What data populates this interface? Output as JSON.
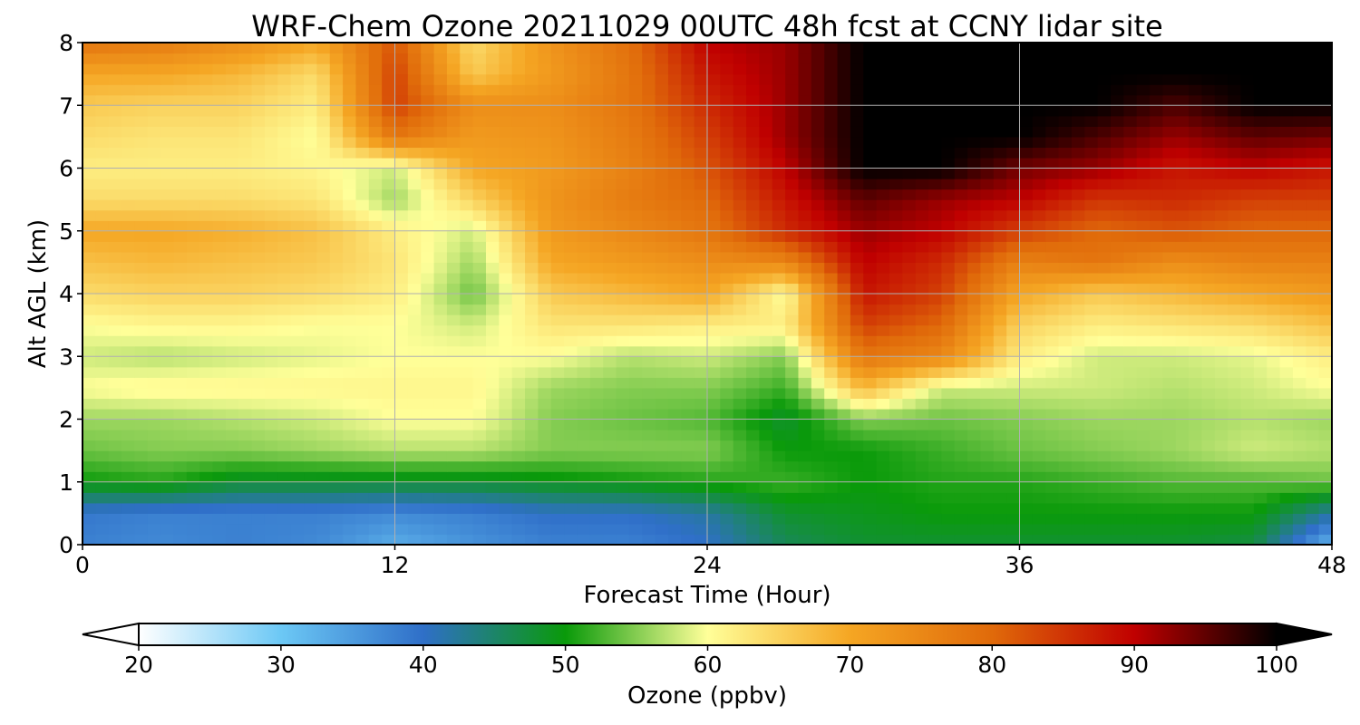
{
  "chart_data": {
    "type": "heatmap",
    "title": "WRF-Chem Ozone  20211029 00UTC 48h fcst at CCNY lidar site",
    "xlabel": "Forecast Time (Hour)",
    "ylabel": "Alt AGL (km)",
    "xlim": [
      0,
      48
    ],
    "ylim": [
      0,
      8
    ],
    "xticks": [
      "0",
      "12",
      "24",
      "36",
      "48"
    ],
    "yticks": [
      "0",
      "1",
      "2",
      "3",
      "4",
      "5",
      "6",
      "7",
      "8"
    ],
    "grid": true,
    "x_hours": [
      0,
      3,
      6,
      9,
      12,
      15,
      18,
      21,
      24,
      27,
      30,
      33,
      36,
      39,
      42,
      45,
      48
    ],
    "y_km": [
      0,
      0.5,
      1,
      1.5,
      2,
      2.5,
      3,
      3.5,
      4,
      4.5,
      5,
      5.5,
      6,
      6.5,
      7,
      7.5,
      8
    ],
    "ozone_ppbv": [
      [
        38,
        37,
        38,
        37,
        33,
        36,
        38,
        38,
        40,
        46,
        48,
        48,
        48,
        48,
        48,
        47,
        32
      ],
      [
        39,
        38,
        38,
        38,
        37,
        38,
        40,
        40,
        42,
        48,
        49,
        50,
        50,
        50,
        50,
        50,
        42
      ],
      [
        50,
        51,
        48,
        48,
        48,
        48,
        49,
        50,
        51,
        52,
        50,
        51,
        51,
        52,
        53,
        53,
        54
      ],
      [
        54,
        55,
        55,
        56,
        57,
        57,
        55,
        55,
        55,
        50,
        50,
        52,
        54,
        55,
        56,
        58,
        57
      ],
      [
        56,
        56,
        57,
        58,
        60,
        60,
        55,
        54,
        53,
        48,
        55,
        54,
        55,
        56,
        56,
        57,
        56
      ],
      [
        60,
        61,
        61,
        61,
        61,
        61,
        56,
        55,
        55,
        52,
        68,
        58,
        58,
        58,
        57,
        58,
        60
      ],
      [
        58,
        57,
        58,
        59,
        60,
        60,
        60,
        57,
        58,
        55,
        78,
        75,
        62,
        58,
        58,
        59,
        62
      ],
      [
        60,
        61,
        61,
        60,
        60,
        58,
        63,
        63,
        62,
        62,
        84,
        80,
        65,
        62,
        63,
        64,
        67
      ],
      [
        64,
        65,
        65,
        64,
        62,
        54,
        66,
        68,
        70,
        60,
        88,
        84,
        70,
        66,
        68,
        70,
        72
      ],
      [
        67,
        68,
        67,
        66,
        63,
        56,
        70,
        72,
        74,
        75,
        90,
        86,
        76,
        78,
        74,
        76,
        76
      ],
      [
        70,
        70,
        69,
        67,
        62,
        58,
        72,
        75,
        78,
        86,
        92,
        90,
        84,
        80,
        82,
        80,
        80
      ],
      [
        64,
        64,
        64,
        63,
        56,
        65,
        73,
        77,
        80,
        88,
        95,
        92,
        90,
        85,
        86,
        84,
        84
      ],
      [
        62,
        62,
        62,
        61,
        58,
        70,
        72,
        76,
        82,
        90,
        100,
        100,
        94,
        92,
        88,
        90,
        88
      ],
      [
        64,
        63,
        63,
        60,
        78,
        72,
        73,
        77,
        84,
        92,
        100,
        100,
        100,
        96,
        92,
        95,
        94
      ],
      [
        66,
        65,
        65,
        62,
        84,
        74,
        74,
        78,
        86,
        92,
        100,
        100,
        100,
        100,
        96,
        100,
        100
      ],
      [
        70,
        70,
        68,
        64,
        84,
        66,
        72,
        78,
        88,
        92,
        100,
        100,
        100,
        100,
        100,
        100,
        100
      ],
      [
        78,
        77,
        74,
        70,
        82,
        64,
        73,
        79,
        90,
        92,
        100,
        100,
        100,
        100,
        100,
        100,
        100
      ]
    ],
    "colorbar": {
      "label": "Ozone  (ppbv)",
      "ticks": [
        "20",
        "30",
        "40",
        "50",
        "60",
        "70",
        "80",
        "90",
        "100"
      ],
      "min": 20,
      "max": 100,
      "extend": "both",
      "colors": [
        "#ffffff",
        "#6cc8f5",
        "#2f6fc8",
        "#0a9a0a",
        "#ffff99",
        "#f5a623",
        "#e06a0a",
        "#c00000",
        "#000000"
      ]
    }
  }
}
